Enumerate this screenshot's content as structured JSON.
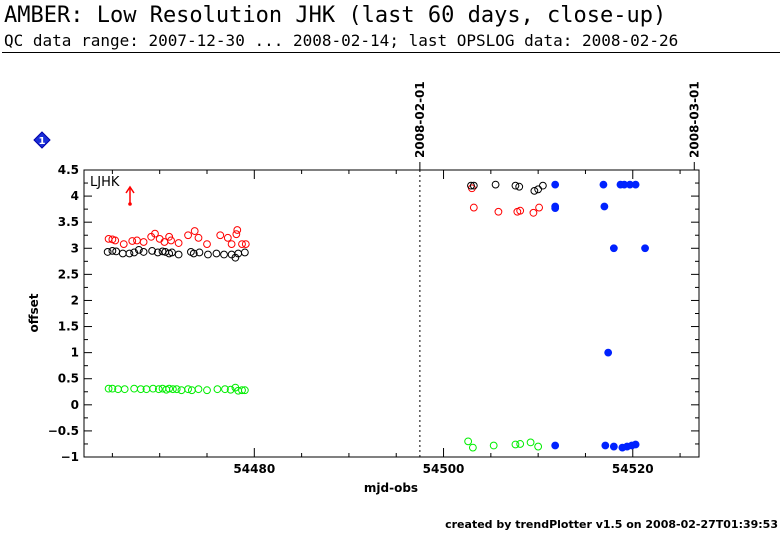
{
  "header": {
    "title": "AMBER: Low Resolution JHK (last 60 days, close-up)",
    "subtitle": "QC data range: 2007-12-30 ... 2008-02-14; last OPSLOG data: 2008-02-26"
  },
  "footer": {
    "text": "created by trendPlotter v1.5 on 2008-02-27T01:39:53"
  },
  "marker_badge": "1",
  "chart_data": {
    "type": "scatter",
    "title": "",
    "xlabel": "mjd-obs",
    "ylabel": "offset",
    "xlim": [
      54462,
      54527
    ],
    "ylim": [
      -1,
      4.5
    ],
    "xticks": [
      54480,
      54500,
      54520
    ],
    "xtick_labels": [
      "54480",
      "54500",
      "54520"
    ],
    "yticks": [
      -1,
      -0.5,
      0,
      0.5,
      1,
      1.5,
      2,
      2.5,
      3,
      3.5,
      4,
      4.5
    ],
    "ytick_labels": [
      "−1",
      "−0.5",
      "0",
      "0.5",
      "1",
      "1.5",
      "2",
      "2.5",
      "3",
      "3.5",
      "4",
      "4.5"
    ],
    "grid": false,
    "annotation": {
      "label": "LJHK",
      "color": "#ff0000"
    },
    "date_markers": [
      {
        "x": 54497.5,
        "label": "2008-02-01",
        "dotted": true
      },
      {
        "x": 54526.5,
        "label": "2008-03-01",
        "dotted": false
      }
    ],
    "series": [
      {
        "color": "#ff0000",
        "marker": "open-circle",
        "points": [
          [
            54464.6,
            3.18
          ],
          [
            54465.0,
            3.17
          ],
          [
            54465.3,
            3.15
          ],
          [
            54466.2,
            3.08
          ],
          [
            54467.1,
            3.14
          ],
          [
            54467.6,
            3.15
          ],
          [
            54468.3,
            3.12
          ],
          [
            54469.1,
            3.22
          ],
          [
            54469.5,
            3.28
          ],
          [
            54470.0,
            3.18
          ],
          [
            54470.5,
            3.12
          ],
          [
            54471.0,
            3.22
          ],
          [
            54471.2,
            3.15
          ],
          [
            54472.0,
            3.1
          ],
          [
            54473.0,
            3.25
          ],
          [
            54473.7,
            3.33
          ],
          [
            54474.1,
            3.2
          ],
          [
            54475.0,
            3.08
          ],
          [
            54476.4,
            3.25
          ],
          [
            54477.2,
            3.2
          ],
          [
            54477.6,
            3.08
          ],
          [
            54478.1,
            3.27
          ],
          [
            54478.2,
            3.35
          ],
          [
            54478.7,
            3.08
          ],
          [
            54479.1,
            3.08
          ],
          [
            54503.0,
            4.15
          ],
          [
            54503.2,
            3.78
          ],
          [
            54505.8,
            3.7
          ],
          [
            54507.8,
            3.7
          ],
          [
            54508.1,
            3.72
          ],
          [
            54509.5,
            3.68
          ],
          [
            54510.1,
            3.78
          ]
        ]
      },
      {
        "color": "#000000",
        "marker": "open-circle",
        "points": [
          [
            54464.5,
            2.93
          ],
          [
            54465.0,
            2.95
          ],
          [
            54465.4,
            2.94
          ],
          [
            54466.1,
            2.9
          ],
          [
            54466.8,
            2.9
          ],
          [
            54467.3,
            2.92
          ],
          [
            54467.8,
            2.97
          ],
          [
            54468.3,
            2.93
          ],
          [
            54469.2,
            2.95
          ],
          [
            54469.8,
            2.92
          ],
          [
            54470.3,
            2.94
          ],
          [
            54470.6,
            2.93
          ],
          [
            54471.0,
            2.9
          ],
          [
            54471.3,
            2.92
          ],
          [
            54472.0,
            2.88
          ],
          [
            54473.3,
            2.93
          ],
          [
            54473.6,
            2.9
          ],
          [
            54474.2,
            2.92
          ],
          [
            54475.1,
            2.88
          ],
          [
            54476.0,
            2.9
          ],
          [
            54476.8,
            2.88
          ],
          [
            54477.6,
            2.88
          ],
          [
            54478.0,
            2.82
          ],
          [
            54478.3,
            2.9
          ],
          [
            54479.0,
            2.92
          ],
          [
            54502.9,
            4.2
          ],
          [
            54503.2,
            4.2
          ],
          [
            54505.5,
            4.22
          ],
          [
            54507.6,
            4.2
          ],
          [
            54508.0,
            4.18
          ],
          [
            54509.6,
            4.1
          ],
          [
            54510.0,
            4.13
          ],
          [
            54510.5,
            4.2
          ]
        ]
      },
      {
        "color": "#00ee00",
        "marker": "open-circle",
        "points": [
          [
            54464.6,
            0.31
          ],
          [
            54465.0,
            0.31
          ],
          [
            54465.6,
            0.3
          ],
          [
            54466.3,
            0.3
          ],
          [
            54467.3,
            0.31
          ],
          [
            54468.0,
            0.3
          ],
          [
            54468.6,
            0.3
          ],
          [
            54469.3,
            0.31
          ],
          [
            54469.9,
            0.3
          ],
          [
            54470.3,
            0.31
          ],
          [
            54470.7,
            0.29
          ],
          [
            54471.0,
            0.31
          ],
          [
            54471.4,
            0.3
          ],
          [
            54471.8,
            0.3
          ],
          [
            54472.3,
            0.28
          ],
          [
            54473.0,
            0.3
          ],
          [
            54473.4,
            0.28
          ],
          [
            54474.1,
            0.3
          ],
          [
            54475.0,
            0.28
          ],
          [
            54476.1,
            0.3
          ],
          [
            54476.9,
            0.3
          ],
          [
            54477.5,
            0.29
          ],
          [
            54478.0,
            0.33
          ],
          [
            54478.3,
            0.27
          ],
          [
            54478.7,
            0.28
          ],
          [
            54479.0,
            0.28
          ],
          [
            54502.6,
            -0.7
          ],
          [
            54503.1,
            -0.82
          ],
          [
            54505.3,
            -0.78
          ],
          [
            54507.6,
            -0.76
          ],
          [
            54508.1,
            -0.75
          ],
          [
            54509.2,
            -0.72
          ],
          [
            54510.0,
            -0.8
          ]
        ]
      },
      {
        "color": "#0022ff",
        "marker": "filled-circle",
        "points": [
          [
            54511.8,
            4.22
          ],
          [
            54511.8,
            3.8
          ],
          [
            54511.8,
            3.77
          ],
          [
            54511.8,
            -0.78
          ],
          [
            54516.9,
            4.22
          ],
          [
            54517.0,
            3.8
          ],
          [
            54517.1,
            -0.78
          ],
          [
            54517.4,
            1.0
          ],
          [
            54518.0,
            3.0
          ],
          [
            54518.0,
            -0.8
          ],
          [
            54518.7,
            4.22
          ],
          [
            54518.9,
            -0.82
          ],
          [
            54519.1,
            4.22
          ],
          [
            54519.4,
            -0.8
          ],
          [
            54519.7,
            4.22
          ],
          [
            54519.9,
            -0.78
          ],
          [
            54520.3,
            4.22
          ],
          [
            54520.3,
            -0.76
          ],
          [
            54521.3,
            3.0
          ]
        ]
      }
    ]
  }
}
